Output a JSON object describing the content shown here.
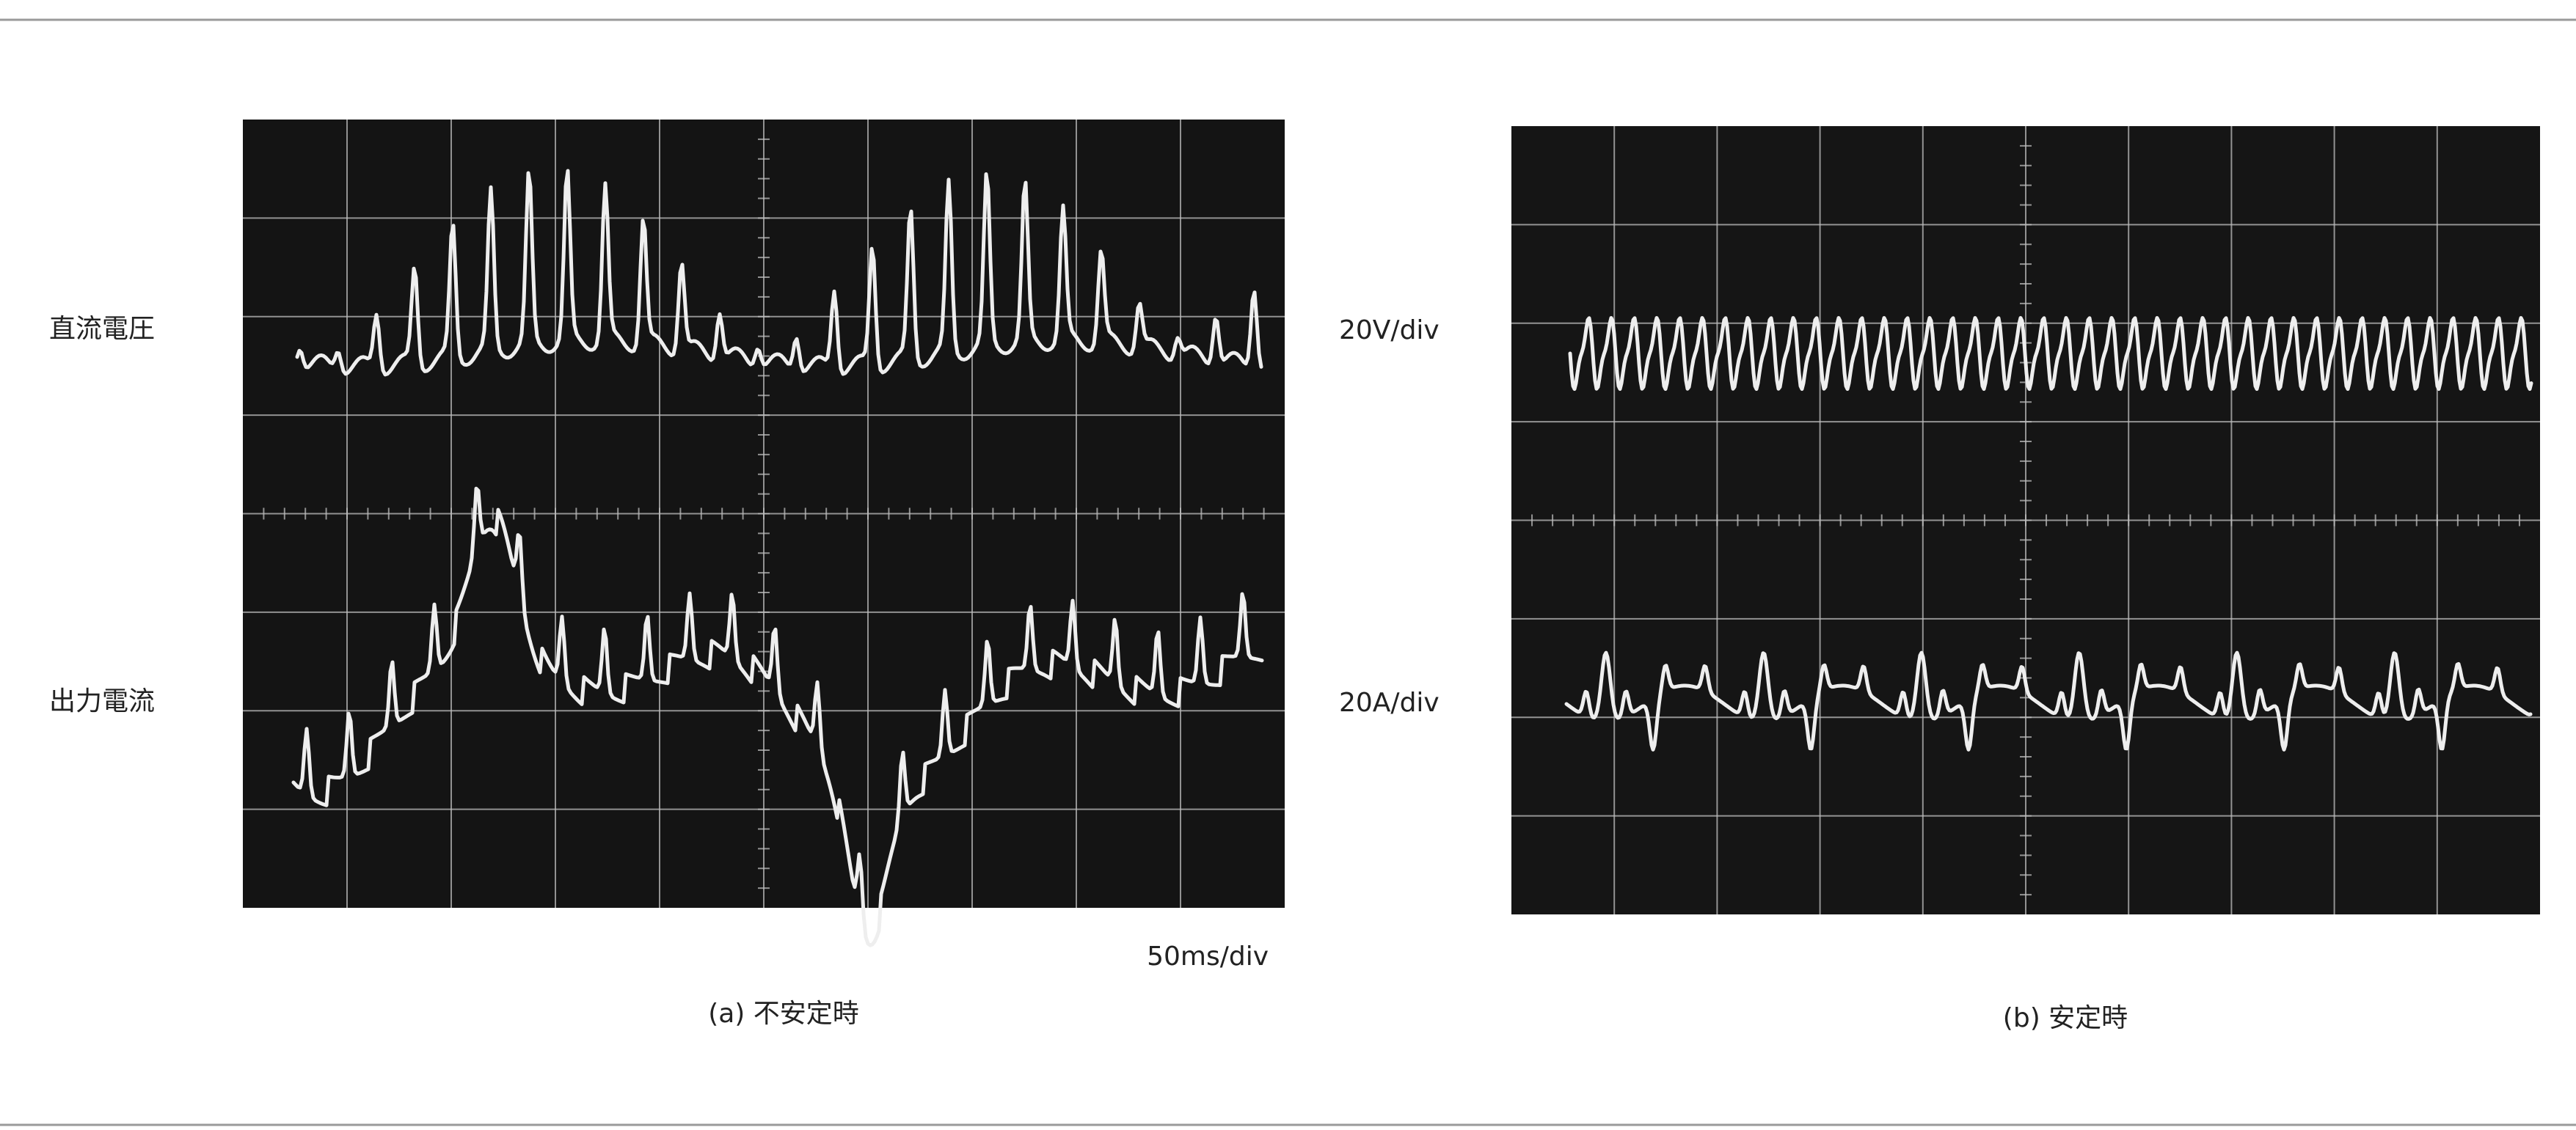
{
  "figure": {
    "panels": [
      {
        "caption": "(a) 不安定時",
        "trace_labels": [
          "直流電圧",
          "出力電流"
        ],
        "time_scale": "50ms/div"
      },
      {
        "caption": "(b) 安定時",
        "trace_labels": [
          "20V/div",
          "20A/div"
        ]
      }
    ]
  }
}
